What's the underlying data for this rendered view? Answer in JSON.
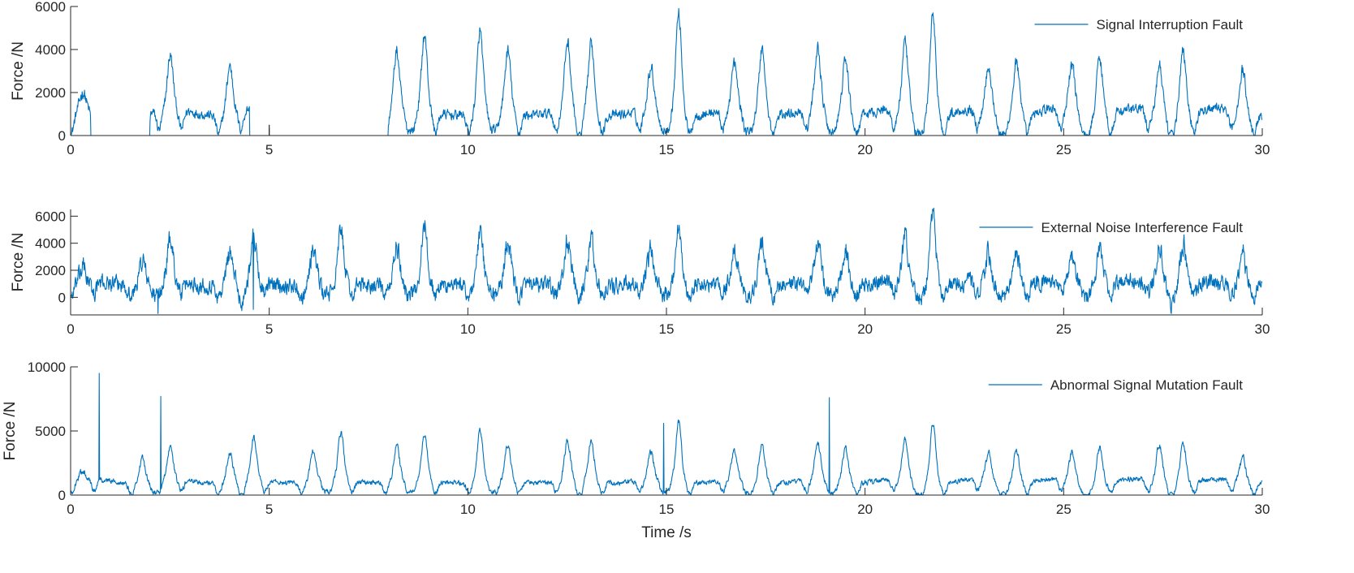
{
  "chart_data": [
    {
      "type": "line",
      "xlabel": "",
      "ylabel": "Force /N",
      "xlim": [
        0,
        30
      ],
      "ylim": [
        0,
        6000
      ],
      "x_ticks": [
        "0",
        "5",
        "10",
        "15",
        "20",
        "25",
        "30"
      ],
      "y_ticks": [
        "0",
        "2000",
        "4000",
        "6000"
      ],
      "legend": "top-right",
      "series": [
        {
          "name": "Signal Interruption Fault",
          "color": "#0072BD",
          "baseline": 1100,
          "noise": 350,
          "peaks": [
            [
              0.3,
              1900
            ],
            [
              2.5,
              3600
            ],
            [
              4.0,
              3300
            ],
            [
              8.2,
              3900
            ],
            [
              8.9,
              4600
            ],
            [
              10.3,
              4800
            ],
            [
              11.0,
              3900
            ],
            [
              12.5,
              4300
            ],
            [
              13.1,
              4300
            ],
            [
              14.6,
              3100
            ],
            [
              15.3,
              5800
            ],
            [
              16.7,
              3200
            ],
            [
              17.4,
              4200
            ],
            [
              18.8,
              4000
            ],
            [
              19.5,
              3700
            ],
            [
              21.0,
              4200
            ],
            [
              21.7,
              5800
            ],
            [
              23.1,
              3200
            ],
            [
              23.8,
              3600
            ],
            [
              25.2,
              3300
            ],
            [
              25.9,
              3900
            ],
            [
              27.4,
              3300
            ],
            [
              28.0,
              4200
            ],
            [
              29.5,
              3100
            ]
          ],
          "dropouts": [
            [
              0.5,
              2.0
            ],
            [
              4.5,
              8.0
            ]
          ],
          "spikes": []
        }
      ]
    },
    {
      "type": "line",
      "xlabel": "",
      "ylabel": "Force /N",
      "xlim": [
        0,
        30
      ],
      "ylim": [
        -1300,
        6500
      ],
      "x_ticks": [
        "0",
        "5",
        "10",
        "15",
        "20",
        "25",
        "30"
      ],
      "y_ticks": [
        "0",
        "2000",
        "4000",
        "6000"
      ],
      "legend": "top-right",
      "series": [
        {
          "name": "External Noise Interference Fault",
          "color": "#0072BD",
          "baseline": 1000,
          "noise": 900,
          "peaks": [
            [
              0.3,
              2100
            ],
            [
              1.8,
              2900
            ],
            [
              2.5,
              4300
            ],
            [
              4.0,
              3500
            ],
            [
              4.6,
              4400
            ],
            [
              6.1,
              3700
            ],
            [
              6.8,
              4800
            ],
            [
              8.2,
              3700
            ],
            [
              8.9,
              5200
            ],
            [
              10.3,
              4600
            ],
            [
              11.0,
              4300
            ],
            [
              12.5,
              4100
            ],
            [
              13.1,
              4300
            ],
            [
              14.6,
              3400
            ],
            [
              15.3,
              5500
            ],
            [
              16.7,
              3200
            ],
            [
              17.4,
              4300
            ],
            [
              18.8,
              4000
            ],
            [
              19.5,
              3600
            ],
            [
              21.0,
              4500
            ],
            [
              21.7,
              6300
            ],
            [
              23.1,
              3200
            ],
            [
              23.8,
              3600
            ],
            [
              25.2,
              3300
            ],
            [
              25.9,
              3600
            ],
            [
              27.4,
              3800
            ],
            [
              28.0,
              4200
            ],
            [
              29.5,
              3400
            ]
          ],
          "dropouts": [],
          "spikes": [
            [
              2.2,
              -1200
            ],
            [
              4.6,
              -900
            ]
          ]
        }
      ]
    },
    {
      "type": "line",
      "xlabel": "Time /s",
      "ylabel": "Force /N",
      "xlim": [
        0,
        30
      ],
      "ylim": [
        0,
        10000
      ],
      "x_ticks": [
        "0",
        "5",
        "10",
        "15",
        "20",
        "25",
        "30"
      ],
      "y_ticks": [
        "0",
        "5000",
        "10000"
      ],
      "legend": "top-right",
      "series": [
        {
          "name": "Abnormal Signal Mutation Fault",
          "color": "#0072BD",
          "baseline": 1100,
          "noise": 300,
          "peaks": [
            [
              0.3,
              1800
            ],
            [
              1.8,
              2900
            ],
            [
              2.5,
              3500
            ],
            [
              4.0,
              3300
            ],
            [
              4.6,
              4400
            ],
            [
              6.1,
              3500
            ],
            [
              6.8,
              4800
            ],
            [
              8.2,
              3800
            ],
            [
              8.9,
              4600
            ],
            [
              10.3,
              4900
            ],
            [
              11.0,
              3900
            ],
            [
              12.5,
              4200
            ],
            [
              13.1,
              4300
            ],
            [
              14.6,
              3200
            ],
            [
              15.3,
              5800
            ],
            [
              16.7,
              3200
            ],
            [
              17.4,
              4100
            ],
            [
              18.8,
              4000
            ],
            [
              19.5,
              3700
            ],
            [
              21.0,
              4400
            ],
            [
              21.7,
              5700
            ],
            [
              23.1,
              3200
            ],
            [
              23.8,
              3600
            ],
            [
              25.2,
              3300
            ],
            [
              25.9,
              3800
            ],
            [
              27.4,
              4000
            ],
            [
              28.0,
              4200
            ],
            [
              29.5,
              3000
            ]
          ],
          "dropouts": [],
          "spikes": [
            [
              0.72,
              9500
            ],
            [
              2.27,
              7700
            ],
            [
              14.93,
              5600
            ],
            [
              19.1,
              7600
            ]
          ]
        }
      ]
    }
  ]
}
